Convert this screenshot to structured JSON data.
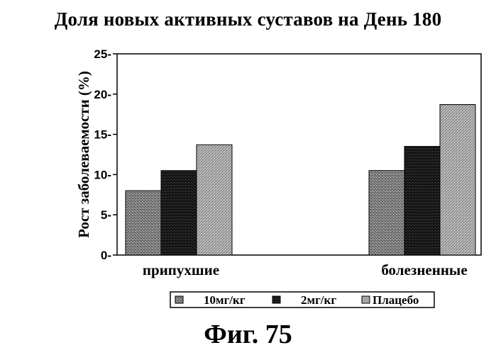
{
  "chart_data": {
    "type": "bar",
    "title": "Доля новых активных суставов на День 180",
    "categories": [
      "припухшие",
      "болезненные"
    ],
    "series": [
      {
        "name": "10мг/кг",
        "values": [
          8,
          10.5
        ]
      },
      {
        "name": "2мг/кг",
        "values": [
          10.5,
          13.5
        ]
      },
      {
        "name": "Плацебо",
        "values": [
          13.7,
          18.7
        ]
      }
    ],
    "xlabel": "",
    "ylabel": "Рост заболеваемости (%)",
    "ylim": [
      0,
      25
    ],
    "yticks": [
      0,
      5,
      10,
      15,
      20,
      25
    ],
    "grid": false,
    "legend_position": "bottom",
    "colors": [
      "#7d7d7d",
      "#151515",
      "#a9a9a9"
    ]
  },
  "caption": "Фиг. 75"
}
